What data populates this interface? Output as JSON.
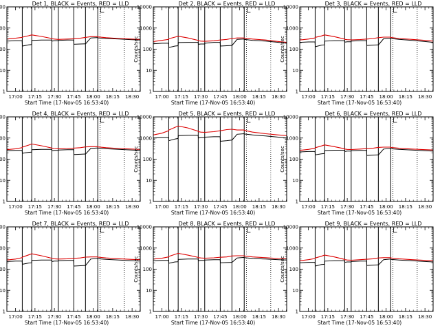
{
  "chart_data": {
    "type": "line",
    "layout": "3x3 grid of panels",
    "x_tick_labels": [
      "17:00",
      "17:15",
      "17:30",
      "17:45",
      "18:00",
      "18:15",
      "18:30"
    ],
    "x_tick_minutes": [
      0,
      15,
      30,
      45,
      60,
      75,
      90
    ],
    "x_range_minutes": [
      -6.7,
      96.3
    ],
    "y_scale": "log",
    "ylim": [
      1,
      10000
    ],
    "y_tick_values": [
      1,
      10,
      100,
      1000,
      10000
    ],
    "y_tick_labels": [
      "1",
      "10",
      "100",
      "1000",
      "10000"
    ],
    "ylabel": "Counts/sec",
    "xlabel": "Start Time (17-Nov-05 16:53:40)",
    "series_colors": {
      "events": "#000000",
      "lld": "#dd0000"
    },
    "solid_markers_minutes": [
      5.2,
      12.5,
      28.0,
      33.0,
      45.0,
      54.0,
      63.5
    ],
    "dotted_markers_minutes": [
      65.2,
      84.0
    ],
    "sample_minutes": [
      -6.7,
      0,
      5.1,
      5.3,
      10,
      12.4,
      12.6,
      20,
      27.9,
      28.1,
      30,
      32.9,
      33.1,
      40,
      44.9,
      45.1,
      50,
      53.9,
      54.1,
      58,
      63.4,
      63.6,
      70,
      80,
      90,
      96.3
    ],
    "panels": [
      {
        "title": "Det 1, BLACK = Events, RED = LLD",
        "events": [
          240,
          250,
          250,
          140,
          160,
          165,
          260,
          270,
          270,
          240,
          250,
          250,
          260,
          270,
          270,
          170,
          175,
          180,
          180,
          340,
          355,
          340,
          320,
          300,
          280,
          270
        ],
        "lld": [
          300,
          330,
          360,
          370,
          430,
          470,
          470,
          400,
          320,
          310,
          300,
          290,
          290,
          300,
          310,
          310,
          330,
          360,
          360,
          390,
          390,
          380,
          350,
          320,
          300,
          290
        ]
      },
      {
        "title": "Det 2, BLACK = Events, RED = LLD",
        "events": [
          180,
          190,
          190,
          120,
          140,
          145,
          205,
          210,
          210,
          170,
          175,
          175,
          190,
          210,
          210,
          140,
          145,
          150,
          150,
          290,
          300,
          290,
          260,
          240,
          210,
          190
        ],
        "lld": [
          230,
          260,
          290,
          310,
          370,
          410,
          410,
          340,
          260,
          250,
          240,
          235,
          235,
          250,
          270,
          270,
          290,
          320,
          320,
          340,
          340,
          330,
          300,
          270,
          230,
          210
        ]
      },
      {
        "title": "Det 3, BLACK = Events, RED = LLD",
        "events": [
          210,
          220,
          220,
          130,
          155,
          160,
          240,
          250,
          250,
          215,
          225,
          225,
          240,
          250,
          250,
          150,
          155,
          160,
          160,
          310,
          330,
          320,
          290,
          260,
          230,
          210
        ],
        "lld": [
          270,
          300,
          340,
          360,
          420,
          470,
          470,
          390,
          300,
          290,
          280,
          275,
          275,
          285,
          300,
          300,
          320,
          350,
          350,
          370,
          370,
          360,
          320,
          290,
          260,
          240
        ]
      },
      {
        "title": "Det 4, BLACK = Events, RED = LLD",
        "events": [
          250,
          260,
          260,
          190,
          210,
          215,
          280,
          290,
          290,
          250,
          260,
          260,
          270,
          280,
          280,
          165,
          170,
          175,
          175,
          320,
          340,
          330,
          310,
          290,
          270,
          260
        ],
        "lld": [
          280,
          310,
          350,
          370,
          460,
          520,
          520,
          430,
          340,
          330,
          320,
          310,
          310,
          320,
          335,
          335,
          350,
          380,
          380,
          390,
          390,
          380,
          350,
          320,
          300,
          290
        ]
      },
      {
        "title": "Det 5, BLACK = Events, RED = LLD",
        "events": [
          1000,
          1050,
          1050,
          750,
          900,
          950,
          1300,
          1350,
          1350,
          1000,
          1050,
          1050,
          1100,
          1150,
          1150,
          700,
          750,
          800,
          800,
          1500,
          1600,
          1550,
          1400,
          1250,
          1100,
          1000
        ],
        "lld": [
          1400,
          1700,
          2200,
          2400,
          3200,
          3700,
          3700,
          3000,
          2100,
          2000,
          1900,
          1850,
          1850,
          2000,
          2200,
          2200,
          2500,
          2600,
          2600,
          2400,
          2400,
          2300,
          1900,
          1600,
          1400,
          1300
        ]
      },
      {
        "title": "Det 6, BLACK = Events, RED = LLD",
        "events": [
          220,
          230,
          230,
          160,
          180,
          185,
          255,
          265,
          265,
          230,
          240,
          240,
          250,
          260,
          260,
          150,
          155,
          160,
          160,
          300,
          320,
          310,
          290,
          270,
          250,
          240
        ],
        "lld": [
          260,
          290,
          330,
          350,
          420,
          470,
          470,
          390,
          310,
          300,
          290,
          285,
          285,
          300,
          315,
          315,
          330,
          360,
          360,
          370,
          370,
          360,
          330,
          300,
          280,
          270
        ]
      },
      {
        "title": "Det 7, BLACK = Events, RED = LLD",
        "events": [
          230,
          240,
          240,
          170,
          195,
          200,
          260,
          270,
          270,
          230,
          240,
          240,
          250,
          260,
          260,
          140,
          145,
          150,
          150,
          300,
          320,
          310,
          290,
          270,
          250,
          240
        ],
        "lld": [
          270,
          300,
          350,
          370,
          470,
          530,
          530,
          430,
          330,
          320,
          310,
          300,
          300,
          310,
          325,
          325,
          340,
          370,
          370,
          380,
          380,
          370,
          340,
          310,
          290,
          280
        ]
      },
      {
        "title": "Det 8, BLACK = Events, RED = LLD",
        "events": [
          250,
          260,
          260,
          190,
          220,
          225,
          290,
          300,
          300,
          250,
          260,
          260,
          270,
          280,
          280,
          200,
          205,
          210,
          210,
          340,
          360,
          350,
          320,
          300,
          280,
          270
        ],
        "lld": [
          300,
          330,
          380,
          400,
          500,
          560,
          560,
          460,
          360,
          350,
          340,
          330,
          330,
          345,
          365,
          365,
          380,
          420,
          420,
          430,
          430,
          420,
          380,
          350,
          320,
          310
        ]
      },
      {
        "title": "Det 9, BLACK = Events, RED = LLD",
        "events": [
          200,
          210,
          210,
          140,
          165,
          170,
          240,
          250,
          250,
          210,
          220,
          220,
          230,
          240,
          240,
          150,
          155,
          160,
          160,
          280,
          300,
          290,
          270,
          250,
          230,
          220
        ],
        "lld": [
          250,
          280,
          320,
          340,
          410,
          460,
          460,
          380,
          290,
          280,
          270,
          265,
          265,
          280,
          295,
          295,
          310,
          340,
          340,
          350,
          350,
          340,
          310,
          280,
          260,
          250
        ]
      }
    ]
  }
}
